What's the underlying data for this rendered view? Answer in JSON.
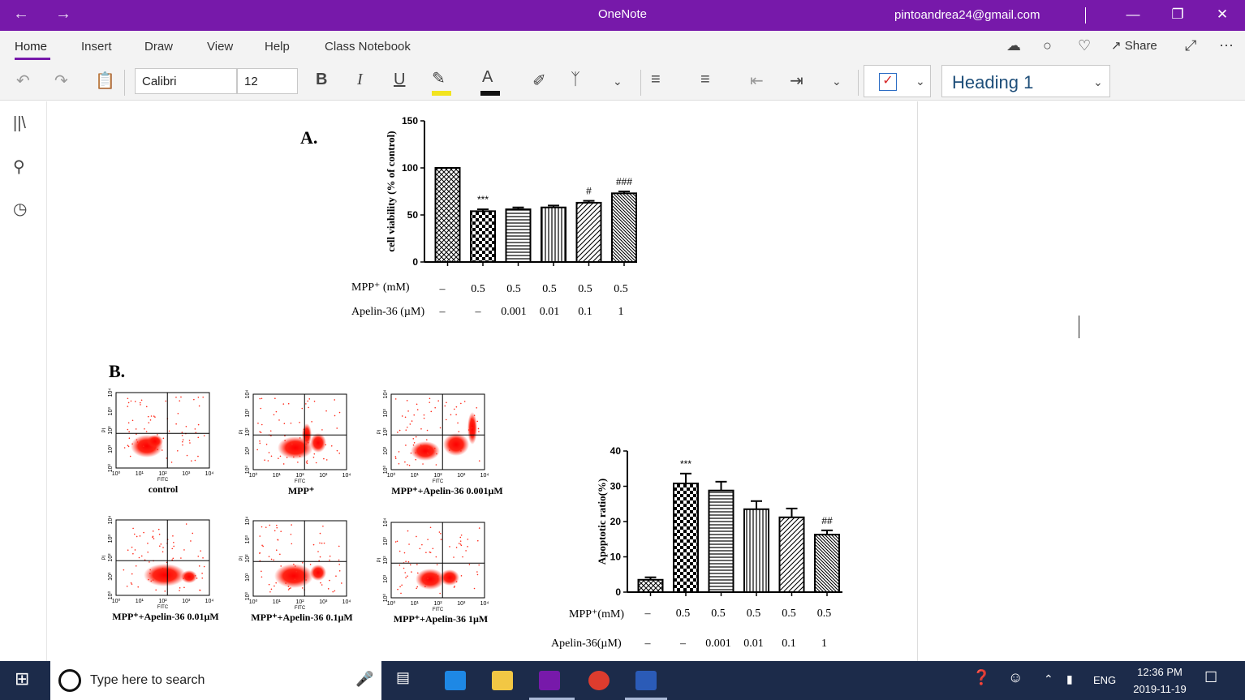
{
  "window": {
    "title": "OneNote",
    "account": "pintoandrea24@gmail.com",
    "back_icon": "arrow-left-icon",
    "forward_icon": "arrow-right-icon"
  },
  "tabs": [
    {
      "label": "Home"
    },
    {
      "label": "Insert"
    },
    {
      "label": "Draw"
    },
    {
      "label": "View"
    },
    {
      "label": "Help"
    },
    {
      "label": "Class Notebook"
    }
  ],
  "share_label": "Share",
  "ribbon": {
    "font_name": "Calibri",
    "font_size": "12",
    "bold": "B",
    "italic": "I",
    "underline": "U",
    "font_color_glyph": "A",
    "style_name": "Heading 1",
    "highlight_color": "#f2e41f",
    "accent": "#7719aa"
  },
  "figure": {
    "panel_a_label": "A.",
    "panel_b_label": "B.",
    "row1_label": "MPP⁺ (mM)",
    "row2_label": "Apelin-36 (µM)",
    "row1_values": [
      "–",
      "0.5",
      "0.5",
      "0.5",
      "0.5",
      "0.5"
    ],
    "row2_values": [
      "–",
      "–",
      "0.001",
      "0.01",
      "0.1",
      "1"
    ],
    "b_row1_label": "MPP⁺(mM)",
    "b_row2_label": "Apelin-36(µM)",
    "b_row1_values": [
      "–",
      "0.5",
      "0.5",
      "0.5",
      "0.5",
      "0.5"
    ],
    "b_row2_values": [
      "–",
      "–",
      "0.001",
      "0.01",
      "0.1",
      "1"
    ],
    "flow_captions": [
      "control",
      "MPP⁺",
      "MPP⁺+Apelin-36 0.001µM",
      "MPP⁺+Apelin-36 0.01µM",
      "MPP⁺+Apelin-36 0.1µM",
      "MPP⁺+Apelin-36 1µM"
    ],
    "flow_axis_x": "FITC",
    "flow_axis_y": "PI",
    "flow_ticks": [
      "10⁰",
      "10¹",
      "10²",
      "10³",
      "10⁴"
    ]
  },
  "chart_data": [
    {
      "type": "bar",
      "ylabel": "cell viability (% of control)",
      "ylim": [
        0,
        150
      ],
      "yticks": [
        "0",
        "50",
        "100",
        "150"
      ],
      "values": [
        100,
        54,
        56,
        58,
        63,
        73
      ],
      "errors": [
        0,
        2,
        2,
        2,
        2,
        2
      ],
      "annotations": [
        "",
        "***",
        "",
        "",
        "#",
        "###"
      ],
      "patterns": [
        "crosshatch",
        "checker",
        "horizontal",
        "vertical",
        "diagonal",
        "diagonal-dense"
      ]
    },
    {
      "type": "bar",
      "ylabel": "Apoptotic ratio(%)",
      "ylim": [
        0,
        40
      ],
      "yticks": [
        "0",
        "10",
        "20",
        "30",
        "40"
      ],
      "values": [
        3.5,
        30.8,
        28.8,
        23.5,
        21.2,
        16.3
      ],
      "errors": [
        0.7,
        2.8,
        2.5,
        2.3,
        2.5,
        1.2
      ],
      "annotations": [
        "",
        "***",
        "",
        "",
        "",
        "##"
      ],
      "patterns": [
        "crosshatch",
        "checker",
        "horizontal",
        "vertical",
        "diagonal",
        "diagonal-dense"
      ]
    }
  ],
  "taskbar": {
    "search_placeholder": "Type here to search",
    "language": "ENG",
    "time": "12:36 PM",
    "date": "2019-11-19"
  }
}
